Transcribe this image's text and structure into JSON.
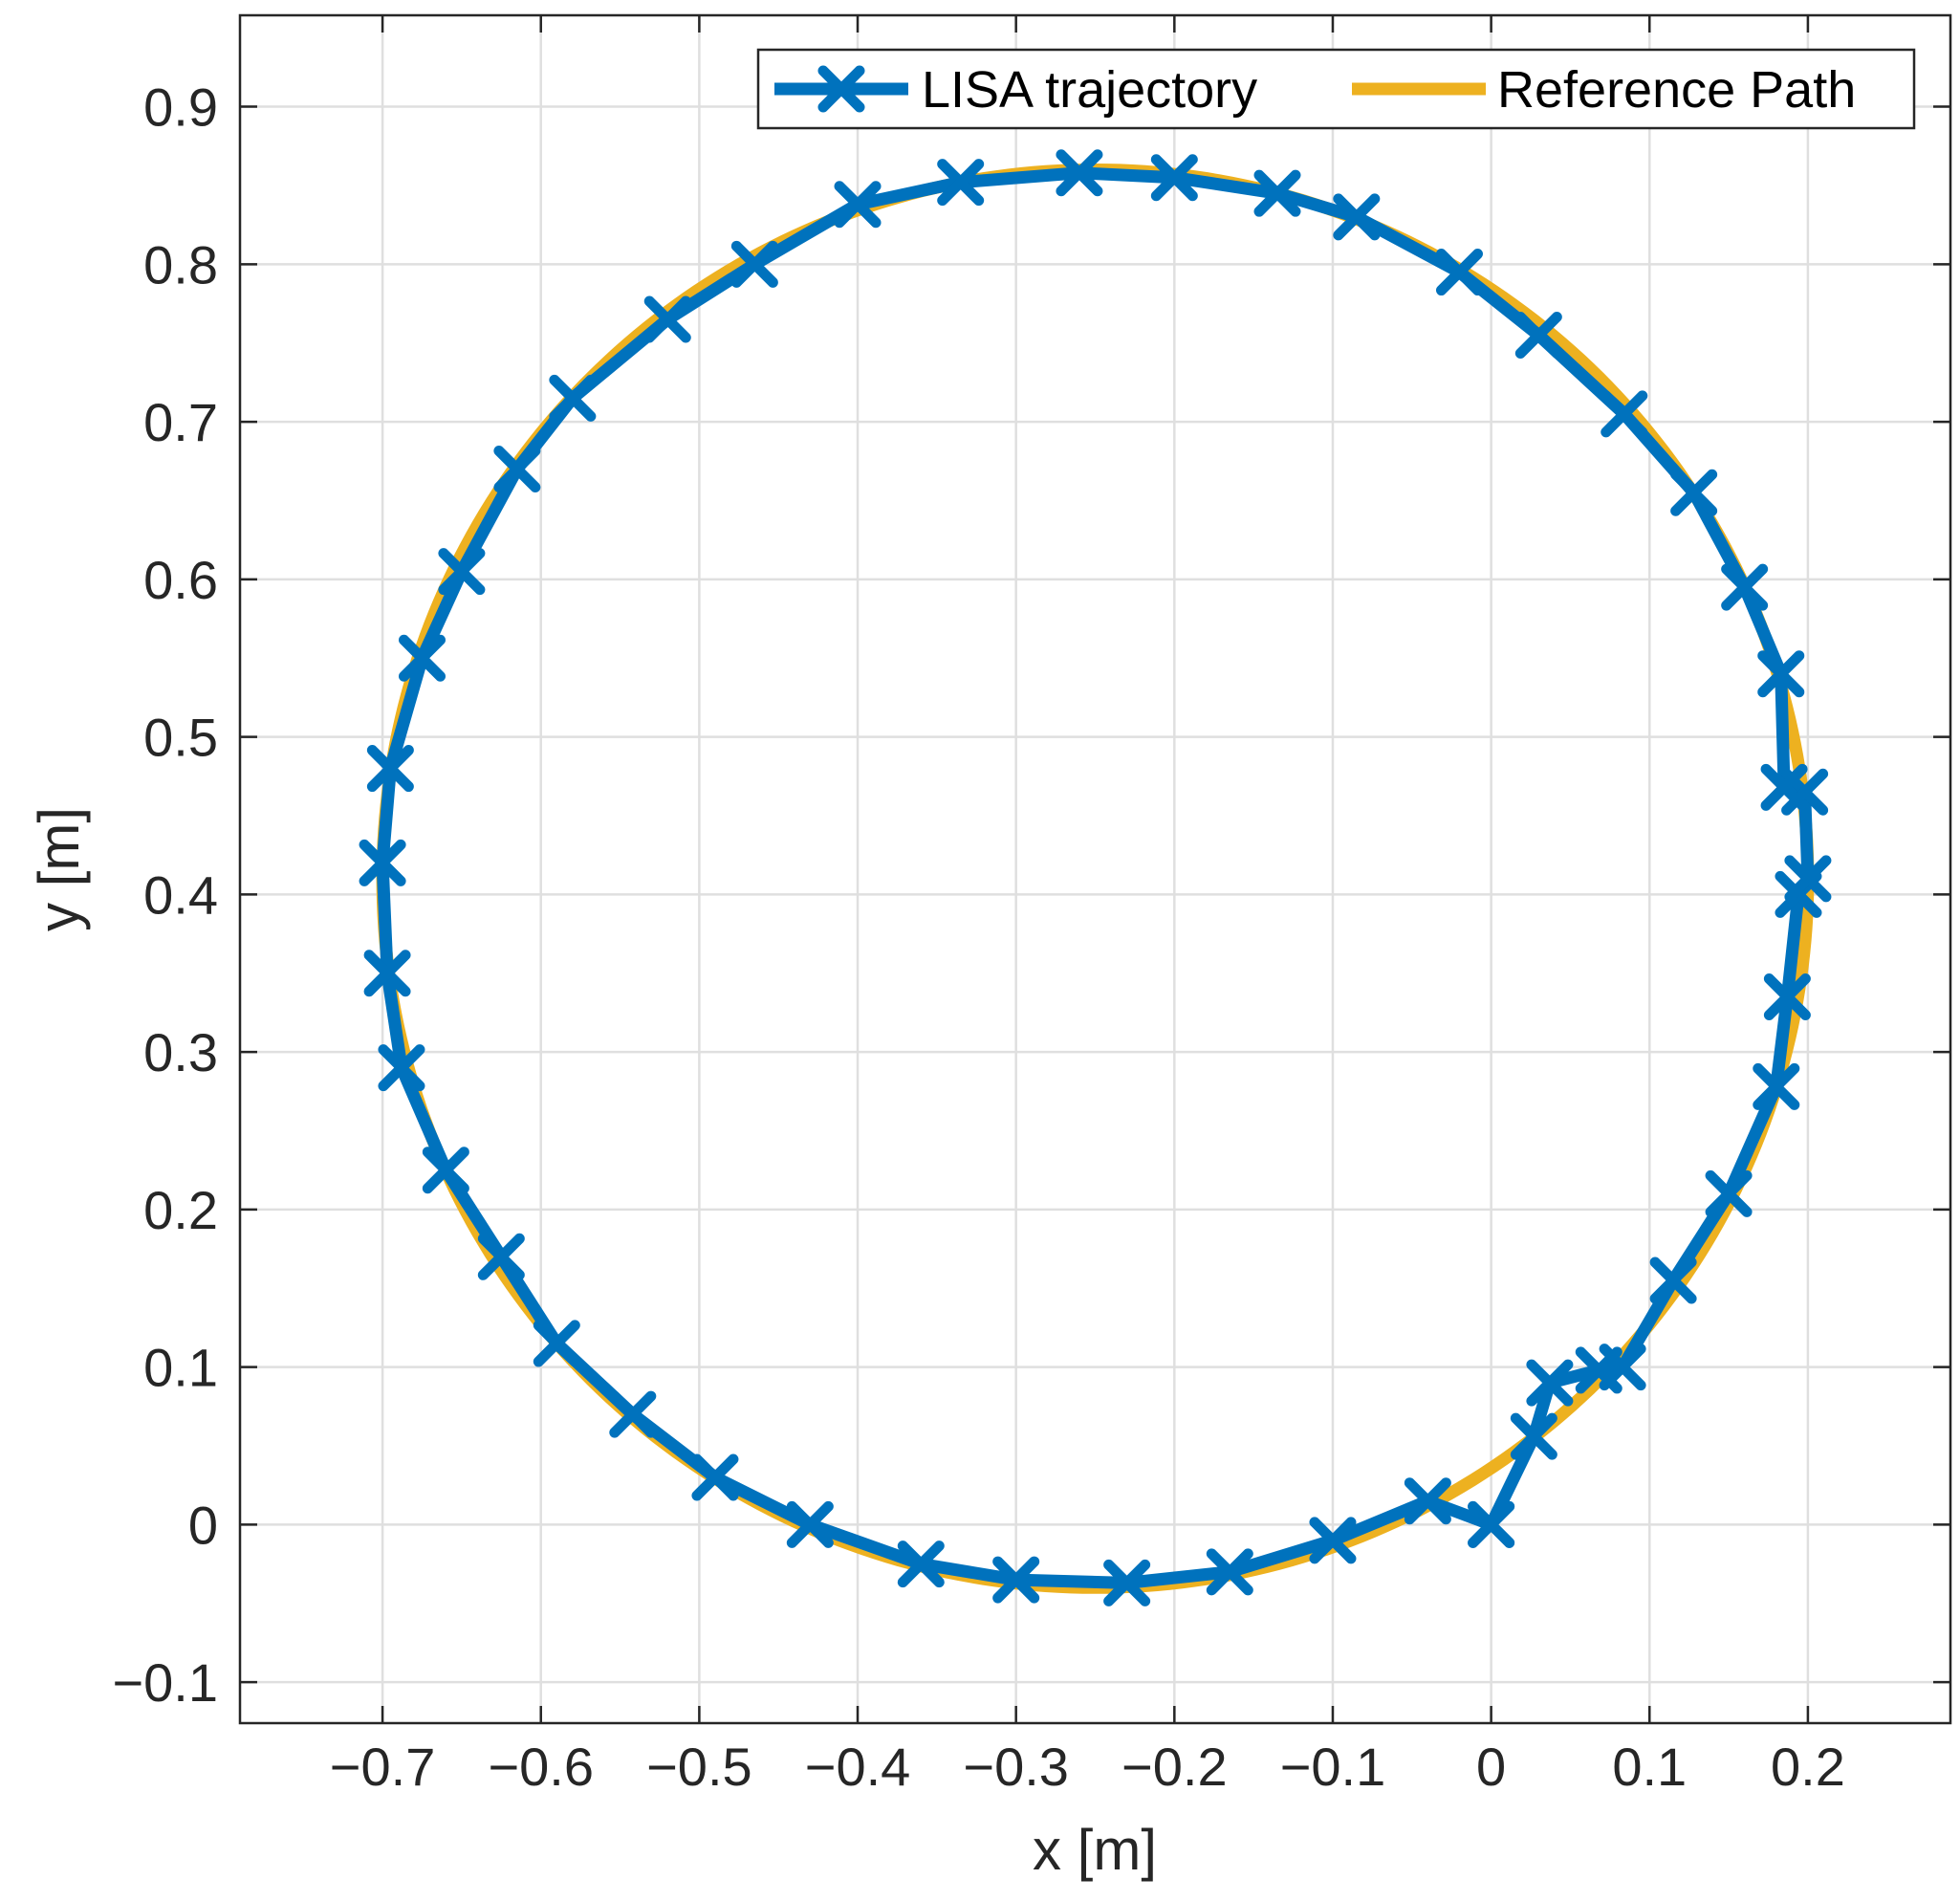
{
  "chart_data": {
    "type": "line",
    "xlabel": "x [m]",
    "ylabel": "y [m]",
    "xlim": [
      -0.79,
      0.29
    ],
    "ylim": [
      -0.126,
      0.958
    ],
    "xticks": [
      -0.7,
      -0.6,
      -0.5,
      -0.4,
      -0.3,
      -0.2,
      -0.1,
      0,
      0.1,
      0.2
    ],
    "xtick_labels": [
      "−0.7",
      "−0.6",
      "−0.5",
      "−0.4",
      "−0.3",
      "−0.2",
      "−0.1",
      "0",
      "0.1",
      "0.2"
    ],
    "yticks": [
      -0.1,
      0,
      0.1,
      0.2,
      0.3,
      0.4,
      0.5,
      0.6,
      0.7,
      0.8,
      0.9
    ],
    "ytick_labels": [
      "−0.1",
      "0",
      "0.1",
      "0.2",
      "0.3",
      "0.4",
      "0.5",
      "0.6",
      "0.7",
      "0.8",
      "0.9"
    ],
    "grid": true,
    "legend_position": "top-right",
    "series": [
      {
        "name": "LISA trajectory",
        "color": "#0072BD",
        "marker": "x",
        "x": [
          0.0,
          0.027,
          0.037,
          0.068,
          0.083,
          0.115,
          0.15,
          0.18,
          0.187,
          0.194,
          0.2,
          0.198,
          0.185,
          0.183,
          0.16,
          0.128,
          0.084,
          0.03,
          -0.02,
          -0.085,
          -0.135,
          -0.2,
          -0.26,
          -0.335,
          -0.4,
          -0.465,
          -0.52,
          -0.58,
          -0.615,
          -0.65,
          -0.675,
          -0.695,
          -0.7,
          -0.697,
          -0.688,
          -0.66,
          -0.625,
          -0.59,
          -0.542,
          -0.49,
          -0.43,
          -0.36,
          -0.3,
          -0.23,
          -0.165,
          -0.1,
          -0.04,
          0.0
        ],
        "y": [
          0.0,
          0.056,
          0.09,
          0.098,
          0.1,
          0.155,
          0.21,
          0.278,
          0.335,
          0.4,
          0.41,
          0.465,
          0.468,
          0.54,
          0.595,
          0.655,
          0.705,
          0.755,
          0.795,
          0.83,
          0.845,
          0.855,
          0.858,
          0.852,
          0.838,
          0.8,
          0.765,
          0.715,
          0.67,
          0.605,
          0.55,
          0.48,
          0.42,
          0.35,
          0.29,
          0.225,
          0.17,
          0.115,
          0.07,
          0.03,
          0.0,
          -0.025,
          -0.035,
          -0.037,
          -0.03,
          -0.01,
          0.015,
          0.0
        ]
      },
      {
        "name": "Reference Path",
        "color": "#EDB120",
        "marker": "none",
        "center": [
          -0.25,
          0.41
        ],
        "radius": 0.45
      }
    ]
  }
}
